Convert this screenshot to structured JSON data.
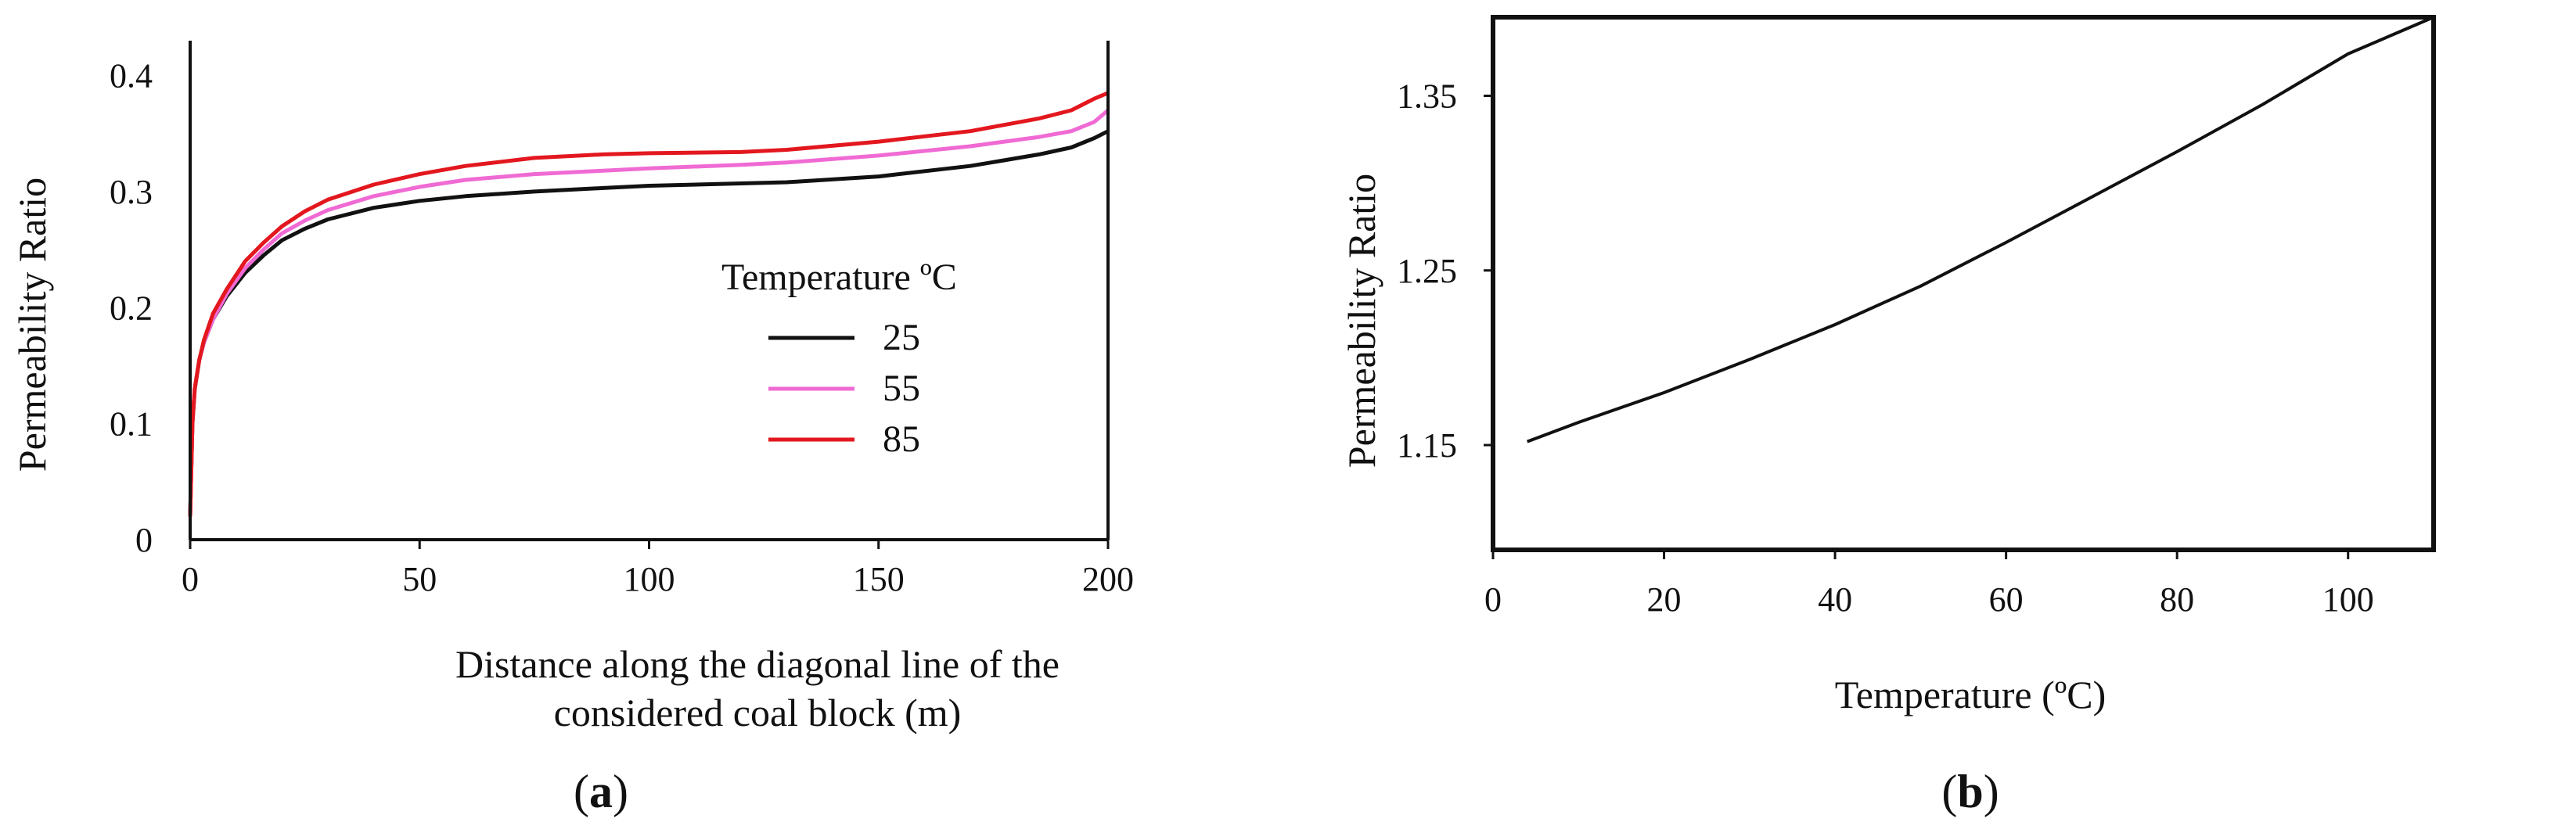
{
  "colors": {
    "t25": "#111111",
    "t55": "#f06ad4",
    "t85": "#e3171e",
    "line_b": "#111111",
    "frame": "#111111"
  },
  "panels": [
    {
      "label_open": "(",
      "label_letter": "a",
      "label_close": ")"
    },
    {
      "label_open": "(",
      "label_letter": "b",
      "label_close": ")"
    }
  ],
  "chart_data": [
    {
      "type": "line",
      "title": "",
      "xlabel_lines": [
        "Distance along the diagonal line of the",
        "considered coal block (m)"
      ],
      "ylabel": "Permeability Ratio",
      "xlim": [
        0,
        200
      ],
      "ylim": [
        0,
        0.43
      ],
      "xticks": [
        0,
        50,
        100,
        150,
        200
      ],
      "xtick_labels": [
        "0",
        "50",
        "100",
        "150",
        "200"
      ],
      "yticks": [
        0,
        0.1,
        0.2,
        0.3,
        0.4
      ],
      "ytick_labels": [
        "0",
        "0.1",
        "0.2",
        "0.3",
        "0.4"
      ],
      "legend_title": "Temperature ºC",
      "legend_position": "center-right",
      "series": [
        {
          "name": "25",
          "color_key": "t25",
          "x": [
            0,
            0.5,
            1,
            2,
            3,
            5,
            8,
            12,
            16,
            20,
            25,
            30,
            40,
            50,
            60,
            75,
            90,
            100,
            120,
            130,
            150,
            170,
            185,
            192,
            197,
            200
          ],
          "y": [
            0.02,
            0.1,
            0.13,
            0.155,
            0.17,
            0.19,
            0.21,
            0.23,
            0.245,
            0.258,
            0.268,
            0.276,
            0.286,
            0.292,
            0.296,
            0.3,
            0.303,
            0.305,
            0.307,
            0.308,
            0.313,
            0.322,
            0.332,
            0.338,
            0.346,
            0.352
          ]
        },
        {
          "name": "55",
          "color_key": "t55",
          "x": [
            0,
            0.5,
            1,
            2,
            3,
            5,
            8,
            12,
            16,
            20,
            25,
            30,
            40,
            50,
            60,
            75,
            90,
            100,
            120,
            130,
            150,
            170,
            185,
            192,
            197,
            200
          ],
          "y": [
            0.02,
            0.1,
            0.13,
            0.155,
            0.17,
            0.19,
            0.212,
            0.234,
            0.25,
            0.264,
            0.275,
            0.284,
            0.296,
            0.304,
            0.31,
            0.315,
            0.318,
            0.32,
            0.323,
            0.325,
            0.331,
            0.339,
            0.347,
            0.352,
            0.36,
            0.37
          ]
        },
        {
          "name": "85",
          "color_key": "t85",
          "x": [
            0,
            0.5,
            1,
            2,
            3,
            5,
            8,
            12,
            16,
            20,
            25,
            30,
            40,
            50,
            60,
            75,
            90,
            100,
            120,
            130,
            150,
            170,
            185,
            192,
            197,
            200
          ],
          "y": [
            0.02,
            0.1,
            0.13,
            0.155,
            0.172,
            0.195,
            0.216,
            0.24,
            0.256,
            0.27,
            0.283,
            0.293,
            0.306,
            0.315,
            0.322,
            0.329,
            0.332,
            0.333,
            0.334,
            0.336,
            0.343,
            0.352,
            0.363,
            0.37,
            0.38,
            0.385
          ]
        }
      ]
    },
    {
      "type": "line",
      "title": "",
      "xlabel": "Temperature (ºC)",
      "ylabel": "Permeability Ratio",
      "xlim": [
        0,
        110
      ],
      "ylim": [
        1.09,
        1.395
      ],
      "xticks": [
        0,
        20,
        40,
        60,
        80,
        100
      ],
      "xtick_labels": [
        "0",
        "20",
        "40",
        "60",
        "80",
        "100"
      ],
      "yticks": [
        1.15,
        1.25,
        1.35
      ],
      "ytick_labels": [
        "1.15",
        "1.25",
        "1.35"
      ],
      "series": [
        {
          "color_key": "line_b",
          "x": [
            4,
            10,
            20,
            30,
            40,
            50,
            60,
            70,
            80,
            90,
            100,
            110
          ],
          "y": [
            1.152,
            1.163,
            1.18,
            1.199,
            1.219,
            1.241,
            1.266,
            1.292,
            1.318,
            1.345,
            1.374,
            1.395
          ]
        }
      ]
    }
  ]
}
